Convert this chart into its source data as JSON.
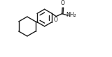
{
  "bg_color": "#ffffff",
  "line_color": "#1a1a1a",
  "line_width": 1.0,
  "text_color": "#1a1a1a",
  "O_label": "O",
  "NH2_label": "NH₂",
  "CO_label": "O",
  "figsize": [
    1.6,
    0.82
  ],
  "dpi": 100,
  "xlim": [
    0,
    10
  ],
  "ylim": [
    0,
    5.2
  ]
}
